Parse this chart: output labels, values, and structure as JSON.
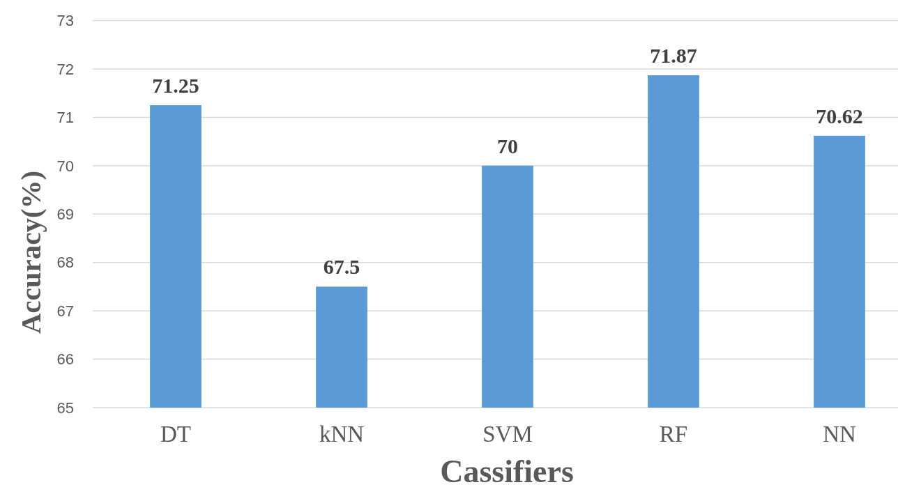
{
  "chart_data": {
    "type": "bar",
    "xlabel": "Cassifiers",
    "ylabel": "Accuracy(%)",
    "categories": [
      "DT",
      "kNN",
      "SVM",
      "RF",
      "NN"
    ],
    "values": [
      71.25,
      67.5,
      70,
      71.87,
      70.62
    ],
    "color": "#5b9bd5",
    "ylim": [
      65,
      73
    ],
    "yticks": [
      65,
      66,
      67,
      68,
      69,
      70,
      71,
      72,
      73
    ],
    "grid": "y",
    "data_labels": true
  }
}
